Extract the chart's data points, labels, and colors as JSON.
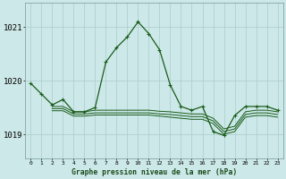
{
  "background_color": "#cce8e8",
  "grid_color": "#aacccc",
  "line_color": "#1a5c1a",
  "title": "Graphe pression niveau de la mer (hPa)",
  "ylabel_ticks": [
    1019,
    1020,
    1021
  ],
  "xlim": [
    -0.5,
    23.5
  ],
  "ylim": [
    1018.55,
    1021.45
  ],
  "figsize": [
    3.2,
    2.0
  ],
  "dpi": 100,
  "main_line": {
    "x": [
      0,
      1,
      2,
      3,
      4,
      5,
      6,
      7,
      8,
      9,
      10,
      11,
      12,
      13,
      14,
      15,
      16,
      17,
      18,
      19,
      20,
      21,
      22,
      23
    ],
    "y": [
      1019.95,
      1019.75,
      1019.55,
      1019.65,
      1019.42,
      1019.42,
      1019.5,
      1020.35,
      1020.62,
      1020.82,
      1021.1,
      1020.88,
      1020.58,
      1019.92,
      1019.52,
      1019.45,
      1019.52,
      1019.05,
      1018.98,
      1019.35,
      1019.52,
      1019.52,
      1019.52,
      1019.45
    ]
  },
  "flat_lines": [
    {
      "x": [
        2,
        3,
        4,
        5,
        6,
        7,
        8,
        9,
        10,
        11,
        12,
        13,
        14,
        15,
        16,
        17,
        18,
        19,
        20,
        21,
        22,
        23
      ],
      "y": [
        1019.52,
        1019.52,
        1019.42,
        1019.42,
        1019.45,
        1019.45,
        1019.45,
        1019.45,
        1019.45,
        1019.45,
        1019.43,
        1019.42,
        1019.4,
        1019.38,
        1019.38,
        1019.3,
        1019.1,
        1019.15,
        1019.42,
        1019.45,
        1019.45,
        1019.42
      ]
    },
    {
      "x": [
        2,
        3,
        4,
        5,
        6,
        7,
        8,
        9,
        10,
        11,
        12,
        13,
        14,
        15,
        16,
        17,
        18,
        19,
        20,
        21,
        22,
        23
      ],
      "y": [
        1019.48,
        1019.48,
        1019.38,
        1019.38,
        1019.4,
        1019.4,
        1019.4,
        1019.4,
        1019.4,
        1019.4,
        1019.38,
        1019.37,
        1019.35,
        1019.33,
        1019.33,
        1019.25,
        1019.05,
        1019.1,
        1019.37,
        1019.4,
        1019.4,
        1019.37
      ]
    },
    {
      "x": [
        2,
        3,
        4,
        5,
        6,
        7,
        8,
        9,
        10,
        11,
        12,
        13,
        14,
        15,
        16,
        17,
        18,
        19,
        20,
        21,
        22,
        23
      ],
      "y": [
        1019.44,
        1019.44,
        1019.34,
        1019.34,
        1019.36,
        1019.36,
        1019.36,
        1019.36,
        1019.36,
        1019.36,
        1019.34,
        1019.32,
        1019.3,
        1019.28,
        1019.28,
        1019.2,
        1019.0,
        1019.05,
        1019.32,
        1019.35,
        1019.35,
        1019.32
      ]
    }
  ]
}
